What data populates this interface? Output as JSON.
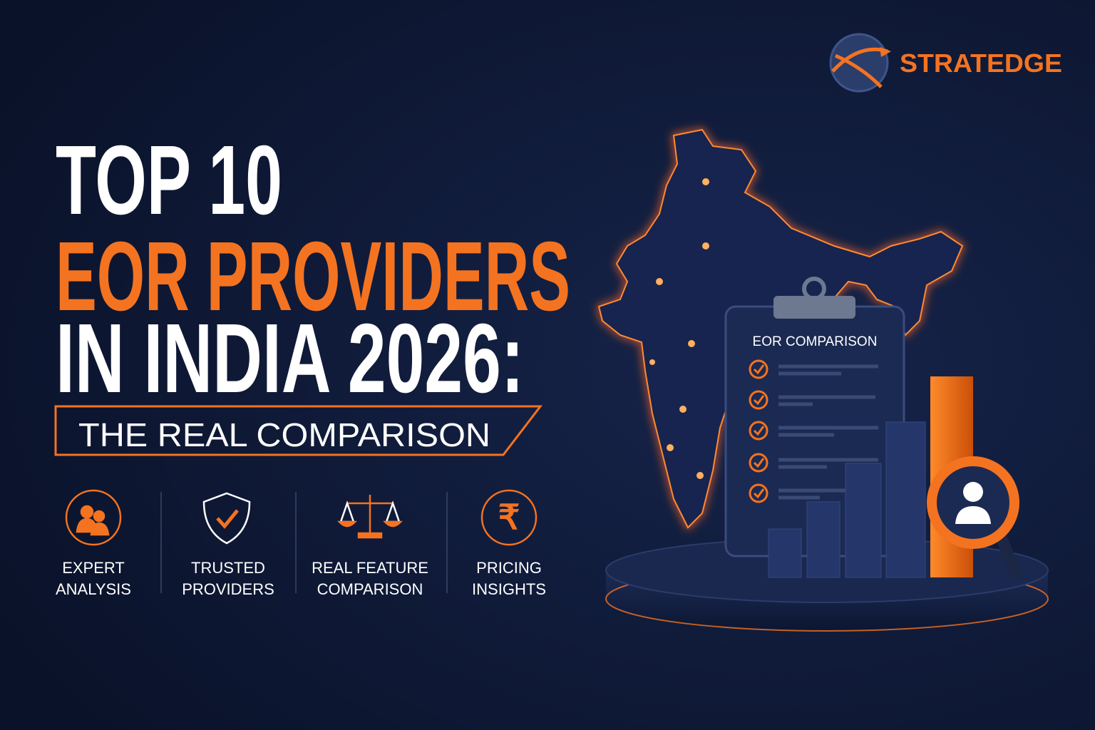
{
  "brand": {
    "name": "STRATEDGE"
  },
  "headline": {
    "line1": "TOP 10",
    "line2": "EOR PROVIDERS",
    "line3": "IN INDIA 2026:"
  },
  "subheadline": "THE REAL COMPARISON",
  "features": [
    {
      "lines": [
        "EXPERT",
        "ANALYSIS"
      ]
    },
    {
      "lines": [
        "TRUSTED",
        "PROVIDERS"
      ]
    },
    {
      "lines": [
        "REAL FEATURE",
        "COMPARISON"
      ]
    },
    {
      "lines": [
        "PRICING",
        "INSIGHTS"
      ],
      "icon": "₹"
    }
  ],
  "clipboard": {
    "title": "EOR COMPARISON"
  }
}
